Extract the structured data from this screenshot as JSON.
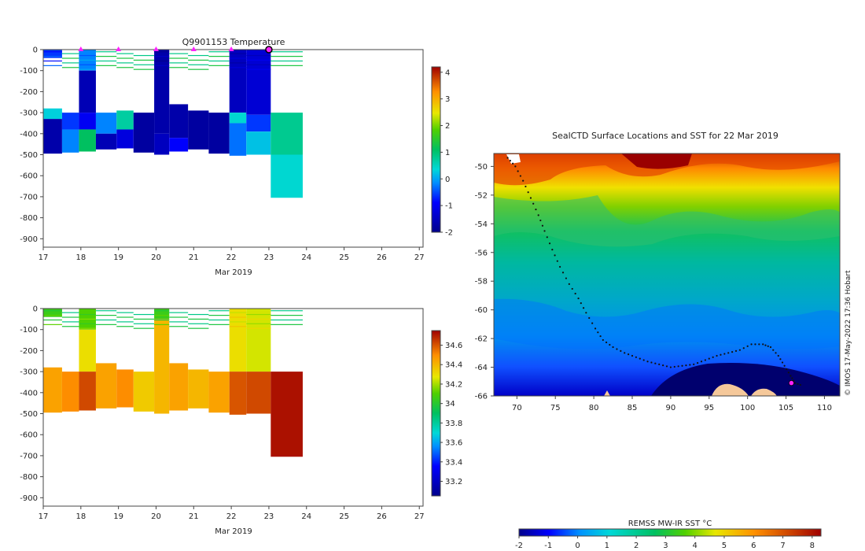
{
  "chart_data": [
    {
      "type": "heatmap",
      "title": "Q9901153  Temperature",
      "xlabel": "Mar 2019",
      "ylabel": "",
      "x_ticks": [
        "17",
        "18",
        "19",
        "20",
        "21",
        "22",
        "23",
        "24",
        "25",
        "26",
        "27"
      ],
      "xlim": [
        17,
        27.1
      ],
      "y_ticks": [
        "0",
        "-100",
        "-200",
        "-300",
        "-400",
        "-500",
        "-600",
        "-700",
        "-800",
        "-900"
      ],
      "ylim": [
        -940,
        0
      ],
      "colorbar": {
        "ticks": [
          "4",
          "3",
          "2",
          "1",
          "0",
          "-1",
          "-2"
        ],
        "range": [
          -2,
          4.2
        ]
      },
      "surface_markers_days": [
        18,
        19,
        20,
        21,
        22,
        23
      ],
      "profiles": [
        {
          "x0": 17.0,
          "x1": 17.5,
          "depth": 495,
          "bands": [
            [
              0,
              40,
              -0.6
            ],
            [
              40,
              280,
              null
            ],
            [
              280,
              330,
              0.3
            ],
            [
              330,
              495,
              -1.7
            ]
          ]
        },
        {
          "x0": 17.5,
          "x1": 17.95,
          "depth": 490,
          "bands": [
            [
              0,
              300,
              null
            ],
            [
              300,
              380,
              -0.6
            ],
            [
              380,
              490,
              -0.2
            ]
          ]
        },
        {
          "x0": 17.95,
          "x1": 18.4,
          "depth": 485,
          "bands": [
            [
              0,
              100,
              -0.2
            ],
            [
              100,
              300,
              -1.6
            ],
            [
              300,
              380,
              -1.0
            ],
            [
              380,
              485,
              1.1
            ]
          ]
        },
        {
          "x0": 18.4,
          "x1": 18.95,
          "depth": 475,
          "bands": [
            [
              0,
              300,
              null
            ],
            [
              300,
              400,
              -0.2
            ],
            [
              400,
              475,
              -1.6
            ]
          ]
        },
        {
          "x0": 18.95,
          "x1": 19.4,
          "depth": 470,
          "bands": [
            [
              0,
              290,
              null
            ],
            [
              290,
              380,
              0.7
            ],
            [
              380,
              470,
              -1.2
            ]
          ]
        },
        {
          "x0": 19.4,
          "x1": 19.95,
          "depth": 490,
          "bands": [
            [
              0,
              300,
              null
            ],
            [
              300,
              490,
              -1.8
            ]
          ]
        },
        {
          "x0": 19.95,
          "x1": 20.35,
          "depth": 500,
          "bands": [
            [
              0,
              400,
              -1.7
            ],
            [
              400,
              500,
              -1.5
            ]
          ]
        },
        {
          "x0": 20.35,
          "x1": 20.85,
          "depth": 485,
          "bands": [
            [
              0,
              260,
              null
            ],
            [
              260,
              420,
              -1.7
            ],
            [
              420,
              485,
              -0.9
            ]
          ]
        },
        {
          "x0": 20.85,
          "x1": 21.4,
          "depth": 475,
          "bands": [
            [
              0,
              290,
              null
            ],
            [
              290,
              475,
              -1.8
            ]
          ]
        },
        {
          "x0": 21.4,
          "x1": 21.95,
          "depth": 495,
          "bands": [
            [
              0,
              300,
              null
            ],
            [
              300,
              495,
              -1.8
            ]
          ]
        },
        {
          "x0": 21.95,
          "x1": 22.4,
          "depth": 505,
          "bands": [
            [
              0,
              300,
              -1.5
            ],
            [
              300,
              350,
              0.4
            ],
            [
              350,
              505,
              -0.3
            ]
          ]
        },
        {
          "x0": 22.4,
          "x1": 23.05,
          "depth": 500,
          "bands": [
            [
              0,
              310,
              -1.3
            ],
            [
              310,
              390,
              -0.6
            ],
            [
              390,
              500,
              0.2
            ]
          ]
        },
        {
          "x0": 23.05,
          "x1": 23.9,
          "depth": 705,
          "bands": [
            [
              0,
              300,
              null
            ],
            [
              300,
              500,
              0.8
            ],
            [
              500,
              705,
              0.4
            ]
          ]
        }
      ]
    },
    {
      "type": "heatmap",
      "title": "",
      "xlabel": "Mar 2019",
      "ylabel": "",
      "x_ticks": [
        "17",
        "18",
        "19",
        "20",
        "21",
        "22",
        "23",
        "24",
        "25",
        "26",
        "27"
      ],
      "xlim": [
        17,
        27.1
      ],
      "y_ticks": [
        "0",
        "-100",
        "-200",
        "-300",
        "-400",
        "-500",
        "-600",
        "-700",
        "-800",
        "-900"
      ],
      "ylim": [
        -940,
        0
      ],
      "colorbar": {
        "ticks": [
          "34.6",
          "34.4",
          "34.2",
          "34",
          "33.8",
          "33.6",
          "33.4",
          "33.2"
        ],
        "range": [
          33.05,
          34.75
        ]
      },
      "profiles": [
        {
          "x0": 17.0,
          "x1": 17.5,
          "depth": 495,
          "bands": [
            [
              0,
              40,
              34.05
            ],
            [
              40,
              280,
              null
            ],
            [
              280,
              495,
              34.45
            ]
          ]
        },
        {
          "x0": 17.5,
          "x1": 17.95,
          "depth": 490,
          "bands": [
            [
              0,
              300,
              null
            ],
            [
              300,
              490,
              34.5
            ]
          ]
        },
        {
          "x0": 17.95,
          "x1": 18.4,
          "depth": 485,
          "bands": [
            [
              0,
              100,
              34.1
            ],
            [
              100,
              300,
              34.3
            ],
            [
              300,
              485,
              34.62
            ]
          ]
        },
        {
          "x0": 18.4,
          "x1": 18.95,
          "depth": 475,
          "bands": [
            [
              0,
              260,
              null
            ],
            [
              260,
              475,
              34.45
            ]
          ]
        },
        {
          "x0": 18.95,
          "x1": 19.4,
          "depth": 470,
          "bands": [
            [
              0,
              290,
              null
            ],
            [
              290,
              470,
              34.5
            ]
          ]
        },
        {
          "x0": 19.4,
          "x1": 19.95,
          "depth": 490,
          "bands": [
            [
              0,
              300,
              null
            ],
            [
              300,
              490,
              34.35
            ]
          ]
        },
        {
          "x0": 19.95,
          "x1": 20.35,
          "depth": 500,
          "bands": [
            [
              0,
              50,
              34.05
            ],
            [
              50,
              500,
              34.4
            ]
          ]
        },
        {
          "x0": 20.35,
          "x1": 20.85,
          "depth": 485,
          "bands": [
            [
              0,
              260,
              null
            ],
            [
              260,
              485,
              34.45
            ]
          ]
        },
        {
          "x0": 20.85,
          "x1": 21.4,
          "depth": 475,
          "bands": [
            [
              0,
              290,
              null
            ],
            [
              290,
              475,
              34.4
            ]
          ]
        },
        {
          "x0": 21.4,
          "x1": 21.95,
          "depth": 495,
          "bands": [
            [
              0,
              300,
              null
            ],
            [
              300,
              495,
              34.45
            ]
          ]
        },
        {
          "x0": 21.95,
          "x1": 22.4,
          "depth": 505,
          "bands": [
            [
              0,
              300,
              34.3
            ],
            [
              300,
              505,
              34.6
            ]
          ]
        },
        {
          "x0": 22.4,
          "x1": 23.05,
          "depth": 500,
          "bands": [
            [
              0,
              300,
              34.25
            ],
            [
              300,
              500,
              34.62
            ]
          ]
        },
        {
          "x0": 23.05,
          "x1": 23.9,
          "depth": 705,
          "bands": [
            [
              0,
              300,
              null
            ],
            [
              300,
              705,
              34.72
            ]
          ]
        }
      ]
    },
    {
      "type": "heatmap",
      "title": "SealCTD Surface Locations and SST for 22 Mar 2019",
      "x_ticks": [
        "70",
        "75",
        "80",
        "85",
        "90",
        "95",
        "100",
        "105",
        "110"
      ],
      "xlim": [
        67,
        112
      ],
      "y_ticks": [
        "-50",
        "-52",
        "-54",
        "-56",
        "-58",
        "-60",
        "-62",
        "-64",
        "-66"
      ],
      "ylim": [
        -66,
        -49.1
      ],
      "colorbar": {
        "label": "REMSS MW-IR SST °C",
        "ticks": [
          "-2",
          "-1",
          "0",
          "1",
          "2",
          "3",
          "4",
          "5",
          "6",
          "7",
          "8"
        ],
        "range": [
          -2,
          8.3
        ]
      },
      "track": [
        [
          68.8,
          -49.4
        ],
        [
          69.8,
          -50
        ],
        [
          70.8,
          -51
        ],
        [
          71.8,
          -52.2
        ],
        [
          72.8,
          -53.4
        ],
        [
          73.6,
          -54.5
        ],
        [
          74.6,
          -55.8
        ],
        [
          75.6,
          -57
        ],
        [
          76.8,
          -58.2
        ],
        [
          78,
          -59.2
        ],
        [
          79,
          -60.2
        ],
        [
          80.2,
          -61.3
        ],
        [
          81.2,
          -62.1
        ],
        [
          82.5,
          -62.6
        ],
        [
          84,
          -63
        ],
        [
          85.5,
          -63.3
        ],
        [
          87,
          -63.6
        ],
        [
          88.5,
          -63.8
        ],
        [
          90,
          -64
        ],
        [
          91.5,
          -63.9
        ],
        [
          93,
          -63.8
        ],
        [
          94.5,
          -63.5
        ],
        [
          96,
          -63.2
        ],
        [
          97.5,
          -63
        ],
        [
          99,
          -62.8
        ],
        [
          100.5,
          -62.4
        ],
        [
          102,
          -62.4
        ],
        [
          103,
          -62.6
        ],
        [
          104,
          -63.2
        ],
        [
          104.8,
          -63.9
        ],
        [
          105.6,
          -64.6
        ],
        [
          106.2,
          -65.1
        ],
        [
          107.2,
          -65.3
        ]
      ],
      "latest_position": [
        105.7,
        -65.1
      ]
    }
  ],
  "credit": "© IMOS 17-May-2022 17:36 Hobart"
}
